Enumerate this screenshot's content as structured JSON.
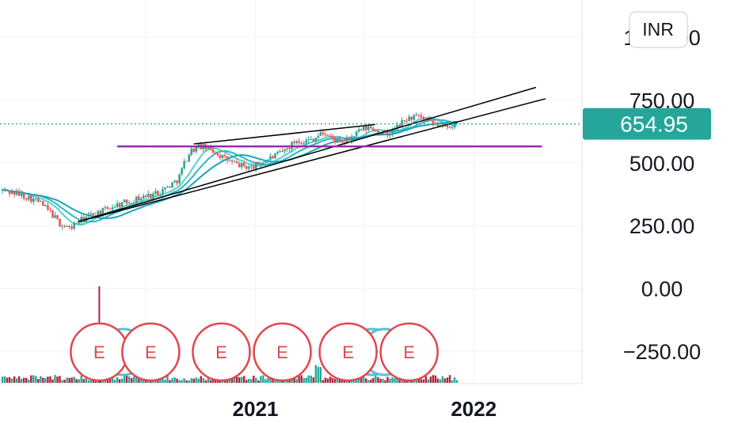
{
  "chart_data": {
    "type": "candlestick",
    "currency": "INR",
    "last_price": 654.95,
    "last_price_label": "654.95",
    "y_axis": {
      "ticks": [
        1000,
        750,
        500,
        250,
        0,
        -250
      ],
      "tick_labels": [
        "1000.00",
        "750.00",
        "500.00",
        "250.00",
        "0.00",
        "−250.00"
      ],
      "range": [
        -370,
        1120
      ]
    },
    "x_axis": {
      "tick_labels": [
        "2021",
        "2022"
      ],
      "range": [
        "2019-11-01",
        "2022-07-01"
      ]
    },
    "grid": true,
    "price_series": [
      {
        "date": "2019-11-05",
        "close": 390
      },
      {
        "date": "2019-11-25",
        "close": 380
      },
      {
        "date": "2019-12-15",
        "close": 365
      },
      {
        "date": "2020-01-05",
        "close": 345
      },
      {
        "date": "2020-01-25",
        "close": 300
      },
      {
        "date": "2020-02-10",
        "close": 255
      },
      {
        "date": "2020-02-25",
        "close": 240
      },
      {
        "date": "2020-03-10",
        "close": 262
      },
      {
        "date": "2020-03-25",
        "close": 285
      },
      {
        "date": "2020-04-10",
        "close": 300
      },
      {
        "date": "2020-04-25",
        "close": 312
      },
      {
        "date": "2020-05-10",
        "close": 330
      },
      {
        "date": "2020-05-25",
        "close": 340
      },
      {
        "date": "2020-06-10",
        "close": 352
      },
      {
        "date": "2020-06-25",
        "close": 362
      },
      {
        "date": "2020-07-10",
        "close": 372
      },
      {
        "date": "2020-07-25",
        "close": 385
      },
      {
        "date": "2020-08-10",
        "close": 408
      },
      {
        "date": "2020-08-25",
        "close": 435
      },
      {
        "date": "2020-09-05",
        "close": 505
      },
      {
        "date": "2020-09-15",
        "close": 548
      },
      {
        "date": "2020-09-28",
        "close": 565
      },
      {
        "date": "2020-10-10",
        "close": 560
      },
      {
        "date": "2020-10-25",
        "close": 545
      },
      {
        "date": "2020-11-10",
        "close": 518
      },
      {
        "date": "2020-11-25",
        "close": 498
      },
      {
        "date": "2020-12-10",
        "close": 488
      },
      {
        "date": "2020-12-25",
        "close": 480
      },
      {
        "date": "2021-01-10",
        "close": 500
      },
      {
        "date": "2021-01-25",
        "close": 518
      },
      {
        "date": "2021-02-10",
        "close": 535
      },
      {
        "date": "2021-02-25",
        "close": 560
      },
      {
        "date": "2021-03-10",
        "close": 590
      },
      {
        "date": "2021-03-25",
        "close": 585
      },
      {
        "date": "2021-04-10",
        "close": 600
      },
      {
        "date": "2021-04-25",
        "close": 620
      },
      {
        "date": "2021-05-10",
        "close": 595
      },
      {
        "date": "2021-05-25",
        "close": 575
      },
      {
        "date": "2021-06-10",
        "close": 600
      },
      {
        "date": "2021-06-25",
        "close": 628
      },
      {
        "date": "2021-07-10",
        "close": 640
      },
      {
        "date": "2021-07-25",
        "close": 625
      },
      {
        "date": "2021-08-10",
        "close": 610
      },
      {
        "date": "2021-08-25",
        "close": 640
      },
      {
        "date": "2021-09-10",
        "close": 672
      },
      {
        "date": "2021-09-25",
        "close": 685
      },
      {
        "date": "2021-10-10",
        "close": 670
      },
      {
        "date": "2021-10-25",
        "close": 652
      },
      {
        "date": "2021-11-10",
        "close": 645
      },
      {
        "date": "2021-11-25",
        "close": 650
      },
      {
        "date": "2021-12-05",
        "close": 655
      }
    ],
    "trend_lines": [
      {
        "color": "#000000",
        "points": [
          [
            "2020-03-10",
            265
          ],
          [
            "2022-04-15",
            800
          ]
        ]
      },
      {
        "color": "#000000",
        "points": [
          [
            "2020-03-10",
            265
          ],
          [
            "2022-05-01",
            755
          ]
        ]
      },
      {
        "color": "#000000",
        "points": [
          [
            "2020-09-20",
            575
          ],
          [
            "2021-07-20",
            652
          ]
        ]
      },
      {
        "color": "#9c27b0",
        "points": [
          [
            "2020-05-15",
            565
          ],
          [
            "2022-04-25",
            565
          ]
        ]
      }
    ],
    "moving_averages": [
      {
        "color": "#56cfd0",
        "window": 3
      },
      {
        "color": "#2cb7c4",
        "window": 5
      },
      {
        "color": "#1aa5b8",
        "window": 8
      }
    ],
    "volume": {
      "color_up": "#26a69a",
      "color_down": "#b2233a",
      "spike": {
        "date": "2020-04-15",
        "value": 1
      }
    },
    "earnings_markers": [
      {
        "label": "E",
        "date": "2020-04-15"
      },
      {
        "label": "E",
        "date": "2020-07-10"
      },
      {
        "label": "E",
        "date": "2020-11-05"
      },
      {
        "label": "E",
        "date": "2021-02-15"
      },
      {
        "label": "E",
        "date": "2021-06-05"
      },
      {
        "label": "E",
        "date": "2021-09-15"
      }
    ],
    "event_rings": [
      {
        "date": "2020-05-25"
      },
      {
        "date": "2021-07-15"
      },
      {
        "date": "2021-08-05"
      }
    ],
    "colors": {
      "up": "#26a69a",
      "down": "#ef5350",
      "price_tag": "#26a69a",
      "dotted_price_line": "#26a69a",
      "earnings": "#e0474c",
      "grid": "#f0f3fa"
    }
  }
}
